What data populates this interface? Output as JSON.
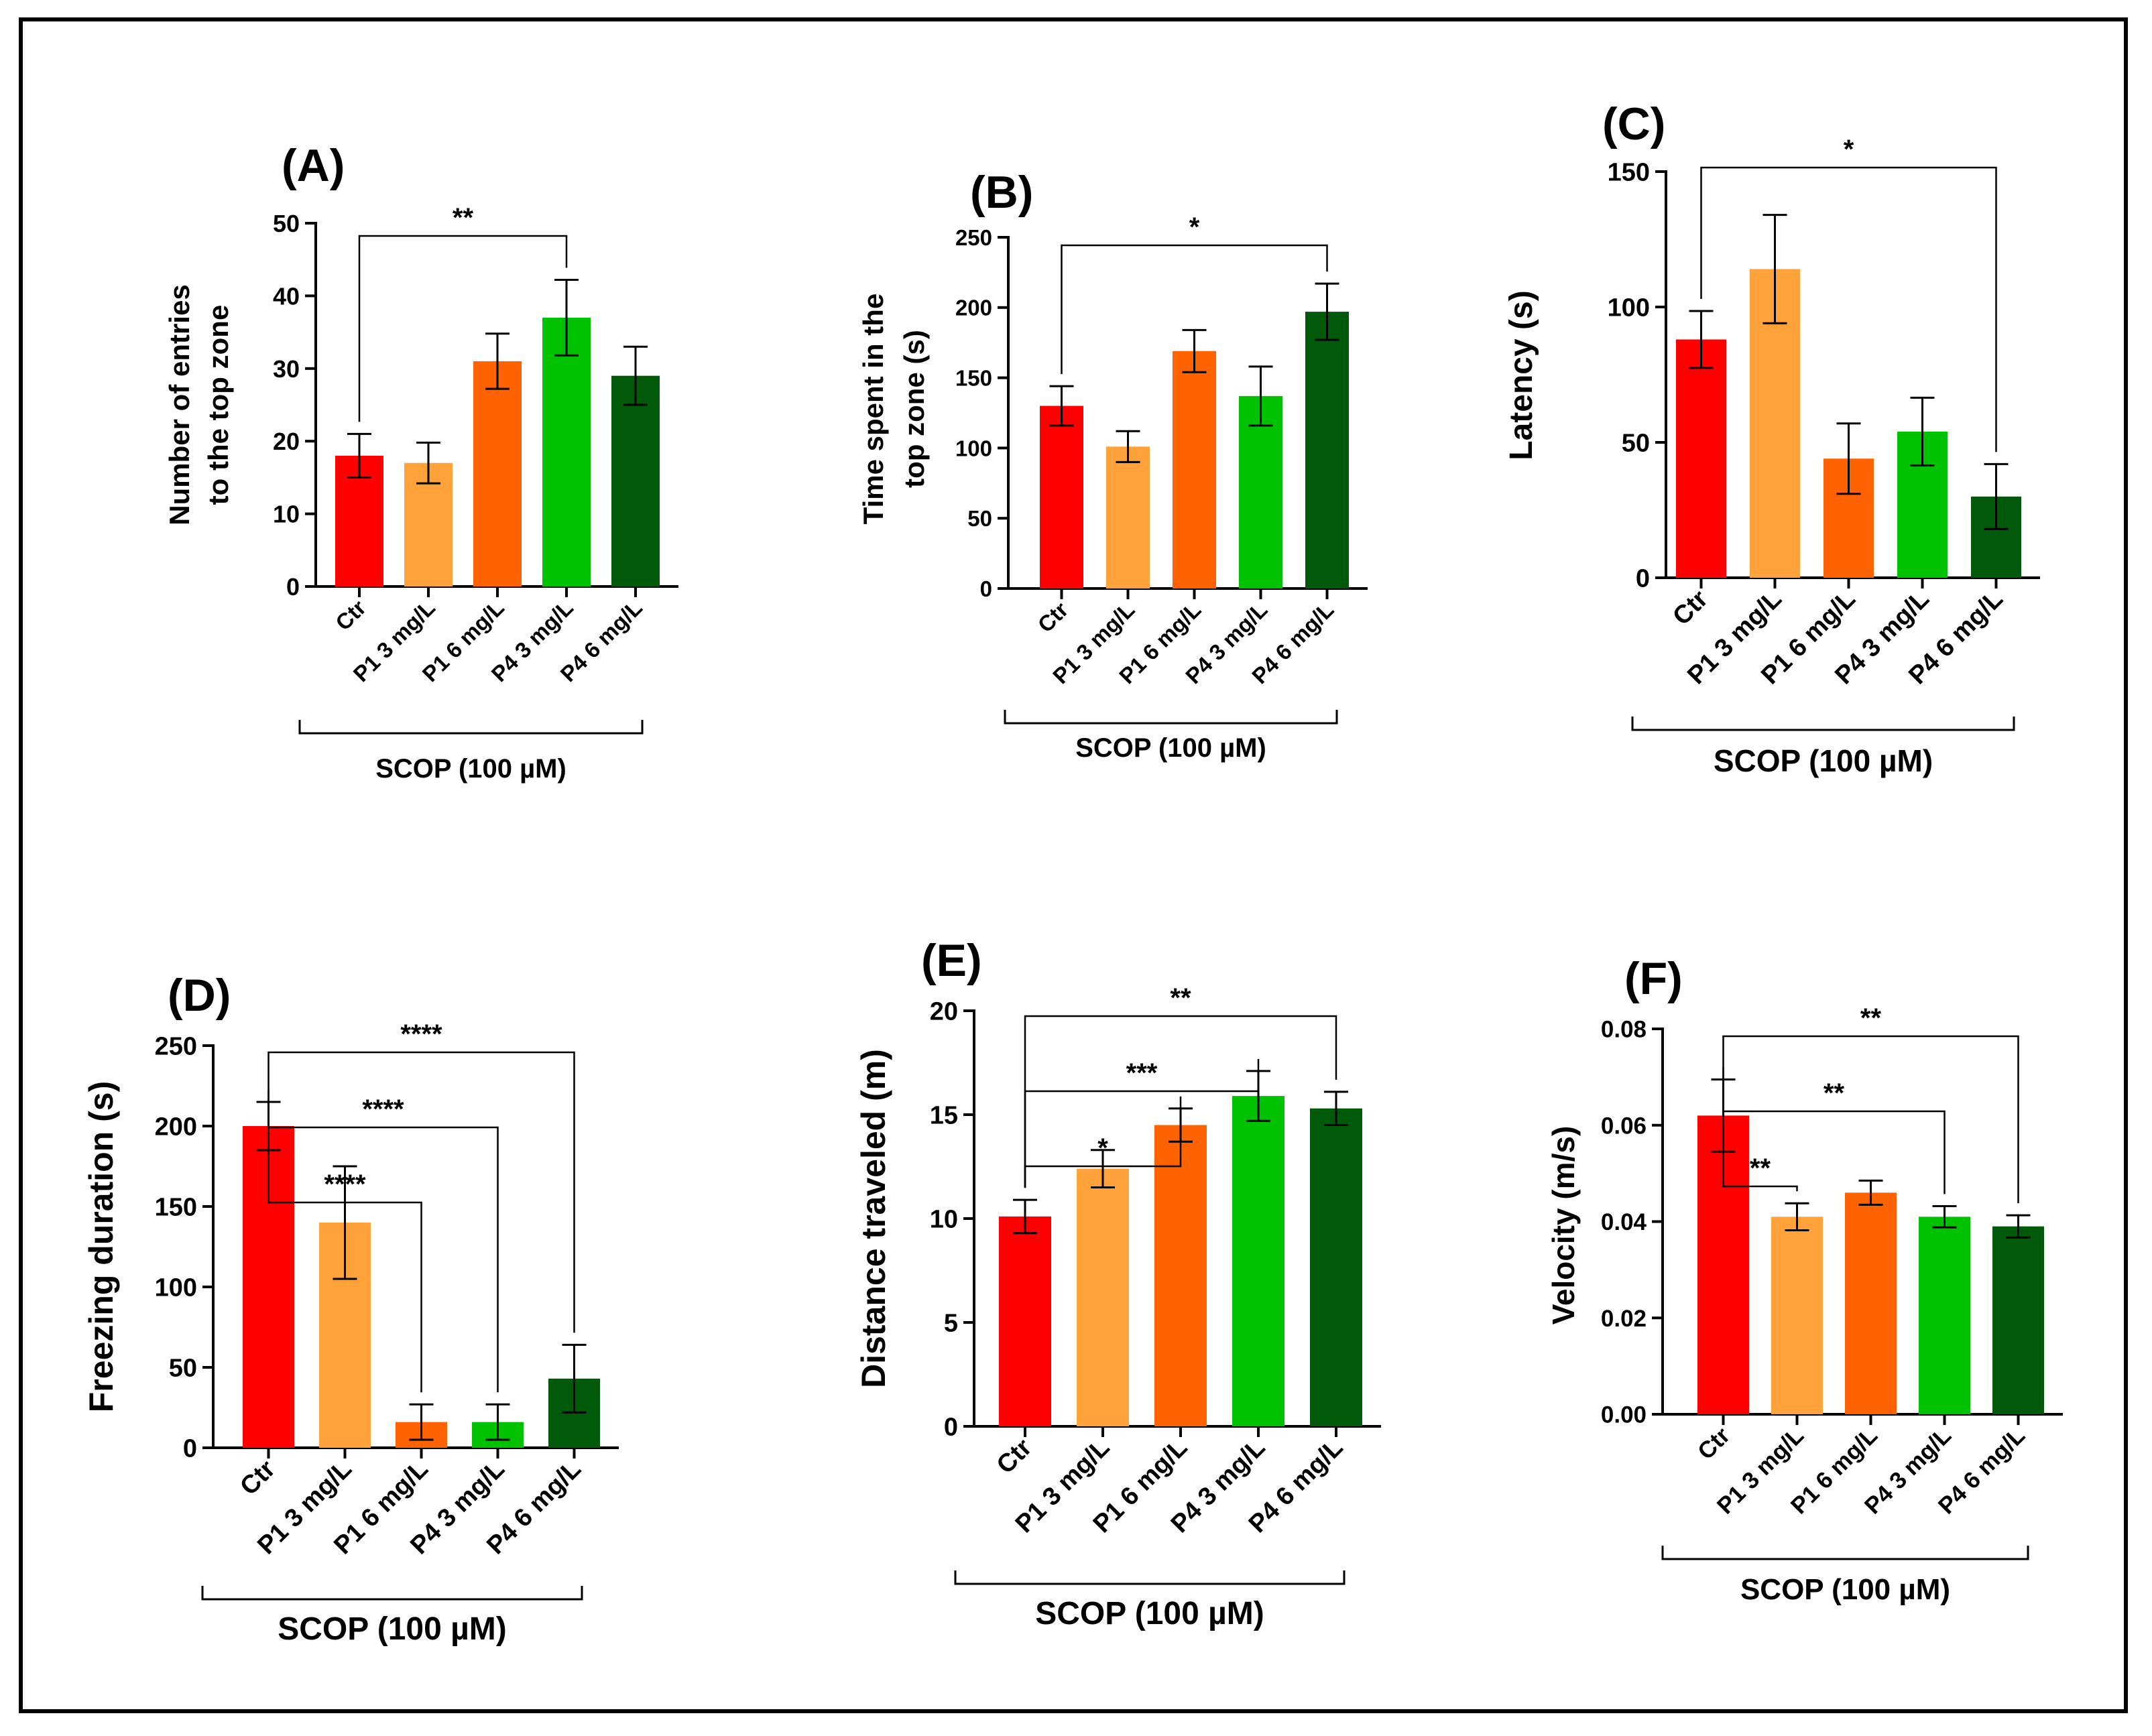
{
  "figure": {
    "colors": [
      "#ff0000",
      "#ffa23a",
      "#ff6200",
      "#00c200",
      "#005a0a"
    ],
    "group_label": "SCOP (100  µM)"
  },
  "chart_data": [
    {
      "type": "bar",
      "panel": "(A)",
      "ylabel": [
        "Number of entries",
        "to the top zone"
      ],
      "ylim": [
        0,
        50
      ],
      "yticks": [
        0,
        10,
        20,
        30,
        40,
        50
      ],
      "categories": [
        "Ctr",
        "P1 3 mg/L",
        "P1 6 mg/L",
        "P4 3 mg/L",
        "P4 6 mg/L"
      ],
      "values": [
        18,
        17,
        31,
        37,
        29
      ],
      "errors": [
        3,
        2.8,
        3.8,
        5.2,
        4
      ],
      "group_label": "SCOP (100  µM)",
      "significance": [
        {
          "from": 0,
          "to": 3,
          "label": "**"
        }
      ]
    },
    {
      "type": "bar",
      "panel": "(B)",
      "ylabel": [
        "Time spent in the",
        "top zone  (s)"
      ],
      "ylim": [
        0,
        250
      ],
      "yticks": [
        0,
        50,
        100,
        150,
        200,
        250
      ],
      "categories": [
        "Ctr",
        "P1 3 mg/L",
        "P1 6 mg/L",
        "P4 3 mg/L",
        "P4 6 mg/L"
      ],
      "values": [
        130,
        101,
        169,
        137,
        197
      ],
      "errors": [
        14,
        11,
        15,
        21,
        20
      ],
      "group_label": "SCOP (100  µM)",
      "significance": [
        {
          "from": 0,
          "to": 4,
          "label": "*"
        }
      ]
    },
    {
      "type": "bar",
      "panel": "(C)",
      "ylabel": [
        "Latency (s)"
      ],
      "ylim": [
        0,
        150
      ],
      "yticks": [
        0,
        50,
        100,
        150
      ],
      "categories": [
        "Ctr",
        "P1 3 mg/L",
        "P1 6 mg/L",
        "P4 3 mg/L",
        "P4 6 mg/L"
      ],
      "values": [
        88,
        114,
        44,
        54,
        30
      ],
      "errors": [
        10.5,
        20,
        13,
        12.5,
        12
      ],
      "group_label": "SCOP (100  µM)",
      "significance": [
        {
          "from": 0,
          "to": 4,
          "label": "*"
        }
      ]
    },
    {
      "type": "bar",
      "panel": "(D)",
      "ylabel": [
        "Freezing duration (s)"
      ],
      "ylim": [
        0,
        250
      ],
      "yticks": [
        0,
        50,
        100,
        150,
        200,
        250
      ],
      "categories": [
        "Ctr",
        "P1 3 mg/L",
        "P1 6 mg/L",
        "P4 3 mg/L",
        "P4 6 mg/L"
      ],
      "values": [
        200,
        140,
        16,
        16,
        43
      ],
      "errors": [
        15,
        35,
        11,
        11,
        21
      ],
      "group_label": "SCOP (100  µM)",
      "significance": [
        {
          "from": 0,
          "to": 2,
          "label": "****"
        },
        {
          "from": 0,
          "to": 3,
          "label": "****"
        },
        {
          "from": 0,
          "to": 4,
          "label": "****"
        }
      ]
    },
    {
      "type": "bar",
      "panel": "(E)",
      "ylabel": [
        "Distance traveled (m)"
      ],
      "ylim": [
        0,
        20
      ],
      "yticks": [
        0,
        5,
        10,
        15,
        20
      ],
      "categories": [
        "Ctr",
        "P1 3 mg/L",
        "P1 6 mg/L",
        "P4 3 mg/L",
        "P4 6 mg/L"
      ],
      "values": [
        10.1,
        12.4,
        14.5,
        15.9,
        15.3
      ],
      "errors": [
        0.8,
        0.9,
        0.8,
        1.2,
        0.8
      ],
      "group_label": "SCOP (100  µM)",
      "significance": [
        {
          "from": 0,
          "to": 2,
          "label": "*"
        },
        {
          "from": 0,
          "to": 3,
          "label": "***"
        },
        {
          "from": 0,
          "to": 4,
          "label": "**"
        }
      ]
    },
    {
      "type": "bar",
      "panel": "(F)",
      "ylabel": [
        "Velocity (m/s)"
      ],
      "ylim": [
        0,
        0.08
      ],
      "yticks": [
        "0.00",
        "0.02",
        "0.04",
        "0.06",
        "0.08"
      ],
      "categories": [
        "Ctr",
        "P1 3 mg/L",
        "P1 6 mg/L",
        "P4 3 mg/L",
        "P4 6 mg/L"
      ],
      "values": [
        0.062,
        0.041,
        0.046,
        0.041,
        0.039
      ],
      "errors": [
        0.0075,
        0.0028,
        0.0025,
        0.0022,
        0.0023
      ],
      "group_label": "SCOP (100  µM)",
      "significance": [
        {
          "from": 0,
          "to": 1,
          "label": "**"
        },
        {
          "from": 0,
          "to": 3,
          "label": "**"
        },
        {
          "from": 0,
          "to": 4,
          "label": "**"
        }
      ]
    }
  ]
}
